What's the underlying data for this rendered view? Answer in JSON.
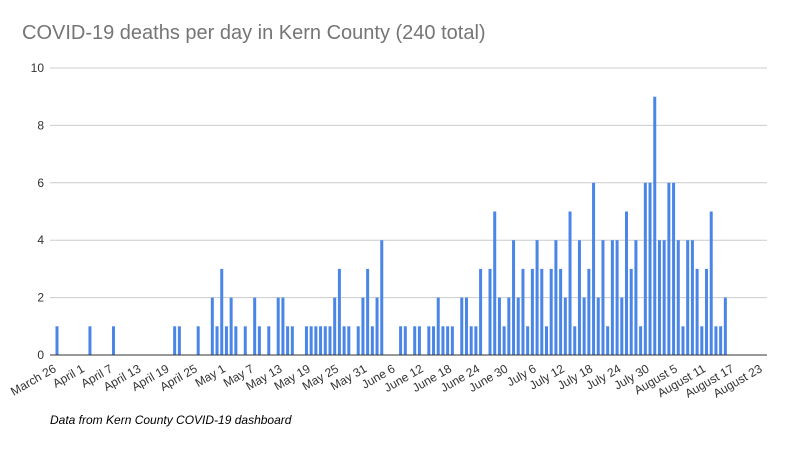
{
  "chart_data": {
    "type": "bar",
    "title": "COVID-19 deaths per day in Kern County (240 total)",
    "source_note": "Data from Kern County COVID-19 dashboard",
    "xlabel": "",
    "ylabel": "",
    "ylim": [
      0,
      10
    ],
    "y_ticks": [
      "0",
      "2",
      "4",
      "6",
      "8",
      "10"
    ],
    "grid": true,
    "legend": "none",
    "start_date": "2020-03-26",
    "end_date": "2020-08-23",
    "x_tick_labels": [
      "March 26",
      "April 1",
      "April 7",
      "April 13",
      "April 19",
      "April 25",
      "May 1",
      "May 7",
      "May 13",
      "May 19",
      "May 25",
      "May 31",
      "June 6",
      "June 12",
      "June 18",
      "June 24",
      "June 30",
      "July 6",
      "July 12",
      "July 18",
      "July 24",
      "July 30",
      "August 5",
      "August 11",
      "August 17",
      "August 23"
    ],
    "bar_color": "#4a86e8",
    "points": [
      {
        "date": "2020-03-26",
        "value": 1
      },
      {
        "date": "2020-04-02",
        "value": 1
      },
      {
        "date": "2020-04-07",
        "value": 1
      },
      {
        "date": "2020-04-20",
        "value": 1
      },
      {
        "date": "2020-04-21",
        "value": 1
      },
      {
        "date": "2020-04-25",
        "value": 1
      },
      {
        "date": "2020-04-28",
        "value": 2
      },
      {
        "date": "2020-04-29",
        "value": 1
      },
      {
        "date": "2020-04-30",
        "value": 3
      },
      {
        "date": "2020-05-01",
        "value": 1
      },
      {
        "date": "2020-05-02",
        "value": 2
      },
      {
        "date": "2020-05-03",
        "value": 1
      },
      {
        "date": "2020-05-05",
        "value": 1
      },
      {
        "date": "2020-05-07",
        "value": 2
      },
      {
        "date": "2020-05-08",
        "value": 1
      },
      {
        "date": "2020-05-10",
        "value": 1
      },
      {
        "date": "2020-05-12",
        "value": 2
      },
      {
        "date": "2020-05-13",
        "value": 2
      },
      {
        "date": "2020-05-14",
        "value": 1
      },
      {
        "date": "2020-05-15",
        "value": 1
      },
      {
        "date": "2020-05-18",
        "value": 1
      },
      {
        "date": "2020-05-19",
        "value": 1
      },
      {
        "date": "2020-05-20",
        "value": 1
      },
      {
        "date": "2020-05-21",
        "value": 1
      },
      {
        "date": "2020-05-22",
        "value": 1
      },
      {
        "date": "2020-05-23",
        "value": 1
      },
      {
        "date": "2020-05-24",
        "value": 2
      },
      {
        "date": "2020-05-25",
        "value": 3
      },
      {
        "date": "2020-05-26",
        "value": 1
      },
      {
        "date": "2020-05-27",
        "value": 1
      },
      {
        "date": "2020-05-29",
        "value": 1
      },
      {
        "date": "2020-05-30",
        "value": 2
      },
      {
        "date": "2020-05-31",
        "value": 3
      },
      {
        "date": "2020-06-01",
        "value": 1
      },
      {
        "date": "2020-06-02",
        "value": 2
      },
      {
        "date": "2020-06-03",
        "value": 4
      },
      {
        "date": "2020-06-07",
        "value": 1
      },
      {
        "date": "2020-06-08",
        "value": 1
      },
      {
        "date": "2020-06-10",
        "value": 1
      },
      {
        "date": "2020-06-11",
        "value": 1
      },
      {
        "date": "2020-06-13",
        "value": 1
      },
      {
        "date": "2020-06-14",
        "value": 1
      },
      {
        "date": "2020-06-15",
        "value": 2
      },
      {
        "date": "2020-06-16",
        "value": 1
      },
      {
        "date": "2020-06-17",
        "value": 1
      },
      {
        "date": "2020-06-18",
        "value": 1
      },
      {
        "date": "2020-06-20",
        "value": 2
      },
      {
        "date": "2020-06-21",
        "value": 2
      },
      {
        "date": "2020-06-22",
        "value": 1
      },
      {
        "date": "2020-06-23",
        "value": 1
      },
      {
        "date": "2020-06-24",
        "value": 3
      },
      {
        "date": "2020-06-26",
        "value": 3
      },
      {
        "date": "2020-06-27",
        "value": 5
      },
      {
        "date": "2020-06-28",
        "value": 2
      },
      {
        "date": "2020-06-29",
        "value": 1
      },
      {
        "date": "2020-06-30",
        "value": 2
      },
      {
        "date": "2020-07-01",
        "value": 4
      },
      {
        "date": "2020-07-02",
        "value": 2
      },
      {
        "date": "2020-07-03",
        "value": 3
      },
      {
        "date": "2020-07-04",
        "value": 1
      },
      {
        "date": "2020-07-05",
        "value": 3
      },
      {
        "date": "2020-07-06",
        "value": 4
      },
      {
        "date": "2020-07-07",
        "value": 3
      },
      {
        "date": "2020-07-08",
        "value": 1
      },
      {
        "date": "2020-07-09",
        "value": 3
      },
      {
        "date": "2020-07-10",
        "value": 4
      },
      {
        "date": "2020-07-11",
        "value": 3
      },
      {
        "date": "2020-07-12",
        "value": 2
      },
      {
        "date": "2020-07-13",
        "value": 5
      },
      {
        "date": "2020-07-14",
        "value": 1
      },
      {
        "date": "2020-07-15",
        "value": 4
      },
      {
        "date": "2020-07-16",
        "value": 2
      },
      {
        "date": "2020-07-17",
        "value": 3
      },
      {
        "date": "2020-07-18",
        "value": 6
      },
      {
        "date": "2020-07-19",
        "value": 2
      },
      {
        "date": "2020-07-20",
        "value": 4
      },
      {
        "date": "2020-07-21",
        "value": 1
      },
      {
        "date": "2020-07-22",
        "value": 4
      },
      {
        "date": "2020-07-23",
        "value": 4
      },
      {
        "date": "2020-07-24",
        "value": 2
      },
      {
        "date": "2020-07-25",
        "value": 5
      },
      {
        "date": "2020-07-26",
        "value": 3
      },
      {
        "date": "2020-07-27",
        "value": 4
      },
      {
        "date": "2020-07-28",
        "value": 1
      },
      {
        "date": "2020-07-29",
        "value": 6
      },
      {
        "date": "2020-07-30",
        "value": 6
      },
      {
        "date": "2020-07-31",
        "value": 9
      },
      {
        "date": "2020-08-01",
        "value": 4
      },
      {
        "date": "2020-08-02",
        "value": 4
      },
      {
        "date": "2020-08-03",
        "value": 6
      },
      {
        "date": "2020-08-04",
        "value": 6
      },
      {
        "date": "2020-08-05",
        "value": 4
      },
      {
        "date": "2020-08-06",
        "value": 1
      },
      {
        "date": "2020-08-07",
        "value": 4
      },
      {
        "date": "2020-08-08",
        "value": 4
      },
      {
        "date": "2020-08-09",
        "value": 3
      },
      {
        "date": "2020-08-10",
        "value": 1
      },
      {
        "date": "2020-08-11",
        "value": 3
      },
      {
        "date": "2020-08-12",
        "value": 5
      },
      {
        "date": "2020-08-13",
        "value": 1
      },
      {
        "date": "2020-08-14",
        "value": 1
      },
      {
        "date": "2020-08-15",
        "value": 2
      }
    ]
  }
}
